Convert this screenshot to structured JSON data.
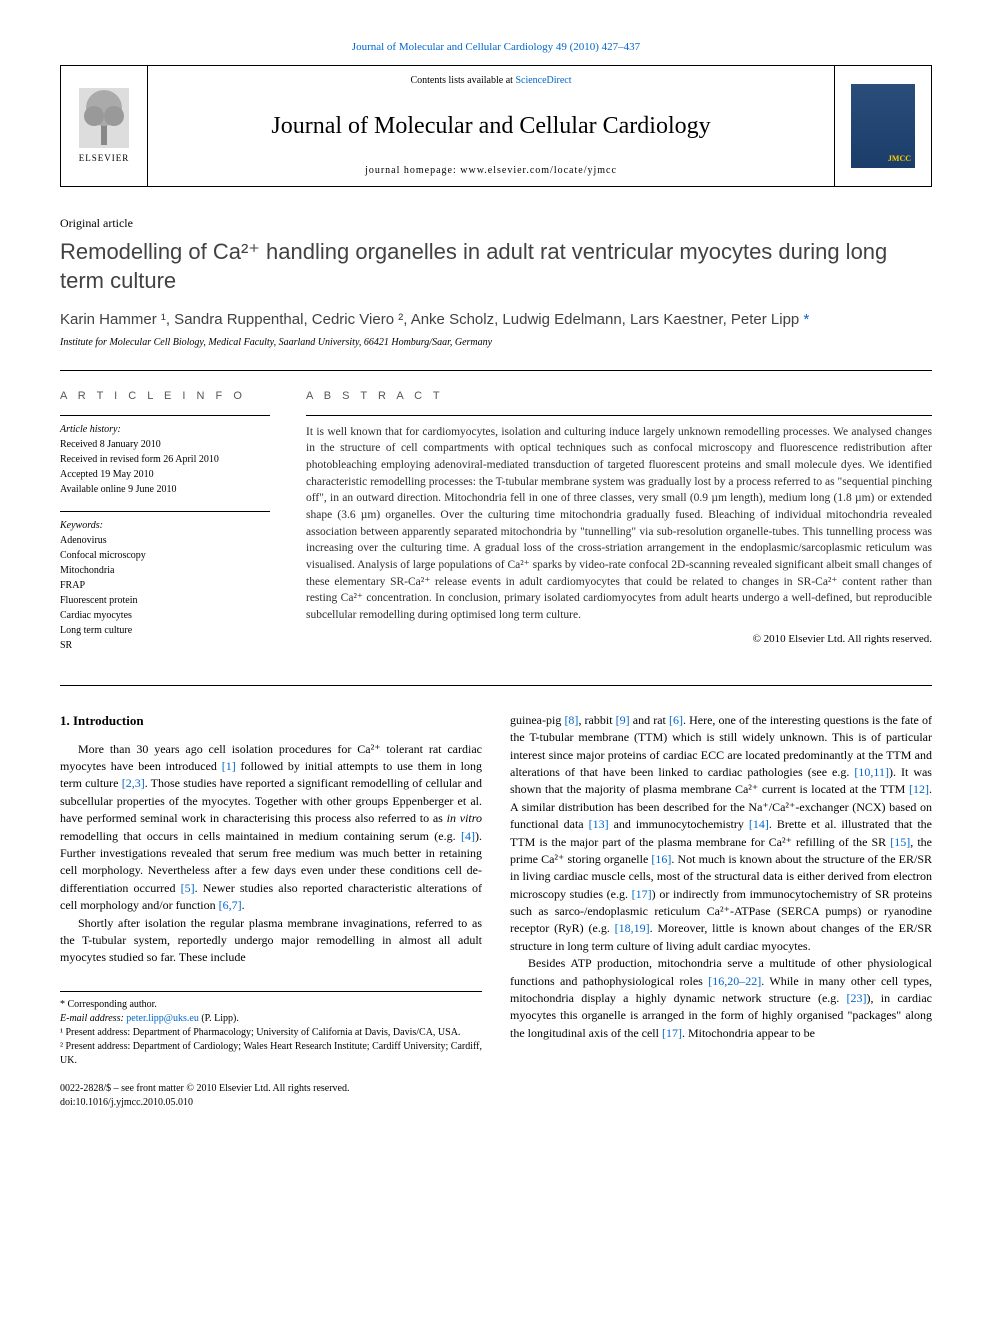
{
  "top_citation": "Journal of Molecular and Cellular Cardiology 49 (2010) 427–437",
  "header": {
    "contents_prefix": "Contents lists available at ",
    "contents_link": "ScienceDirect",
    "journal_title": "Journal of Molecular and Cellular Cardiology",
    "homepage_label": "journal homepage: www.elsevier.com/locate/yjmcc",
    "publisher": "ELSEVIER"
  },
  "article_type": "Original article",
  "title": "Remodelling of Ca²⁺ handling organelles in adult rat ventricular myocytes during long term culture",
  "authors_line": "Karin Hammer ¹, Sandra Ruppenthal, Cedric Viero ², Anke Scholz, Ludwig Edelmann, Lars Kaestner, Peter Lipp ",
  "corresponding_marker": "*",
  "affiliation": "Institute for Molecular Cell Biology, Medical Faculty, Saarland University, 66421 Homburg/Saar, Germany",
  "article_info": {
    "heading": "A R T I C L E   I N F O",
    "history_label": "Article history:",
    "received": "Received 8 January 2010",
    "revised": "Received in revised form 26 April 2010",
    "accepted": "Accepted 19 May 2010",
    "online": "Available online 9 June 2010",
    "keywords_label": "Keywords:",
    "keywords": [
      "Adenovirus",
      "Confocal microscopy",
      "Mitochondria",
      "FRAP",
      "Fluorescent protein",
      "Cardiac myocytes",
      "Long term culture",
      "SR"
    ]
  },
  "abstract": {
    "heading": "A B S T R A C T",
    "text": "It is well known that for cardiomyocytes, isolation and culturing induce largely unknown remodelling processes. We analysed changes in the structure of cell compartments with optical techniques such as confocal microscopy and fluorescence redistribution after photobleaching employing adenoviral-mediated transduction of targeted fluorescent proteins and small molecule dyes. We identified characteristic remodelling processes: the T-tubular membrane system was gradually lost by a process referred to as \"sequential pinching off\", in an outward direction. Mitochondria fell in one of three classes, very small (0.9 µm length), medium long (1.8 µm) or extended shape (3.6 µm) organelles. Over the culturing time mitochondria gradually fused. Bleaching of individual mitochondria revealed association between apparently separated mitochondria by \"tunnelling\" via sub-resolution organelle-tubes. This tunnelling process was increasing over the culturing time. A gradual loss of the cross-striation arrangement in the endoplasmic/sarcoplasmic reticulum was visualised. Analysis of large populations of Ca²⁺ sparks by video-rate confocal 2D-scanning revealed significant albeit small changes of these elementary SR-Ca²⁺ release events in adult cardiomyocytes that could be related to changes in SR-Ca²⁺ content rather than resting Ca²⁺ concentration. In conclusion, primary isolated cardiomyocytes from adult hearts undergo a well-defined, but reproducible subcellular remodelling during optimised long term culture.",
    "copyright": "© 2010 Elsevier Ltd. All rights reserved."
  },
  "body": {
    "intro_heading": "1. Introduction",
    "col1_p1": "More than 30 years ago cell isolation procedures for Ca²⁺ tolerant rat cardiac myocytes have been introduced [1] followed by initial attempts to use them in long term culture [2,3]. Those studies have reported a significant remodelling of cellular and subcellular properties of the myocytes. Together with other groups Eppenberger et al. have performed seminal work in characterising this process also referred to as in vitro remodelling that occurs in cells maintained in medium containing serum (e.g. [4]). Further investigations revealed that serum free medium was much better in retaining cell morphology. Nevertheless after a few days even under these conditions cell de-differentiation occurred [5]. Newer studies also reported characteristic alterations of cell morphology and/or function [6,7].",
    "col1_p2": "Shortly after isolation the regular plasma membrane invaginations, referred to as the T-tubular system, reportedly undergo major remodelling in almost all adult myocytes studied so far. These include",
    "col2_p1": "guinea-pig [8], rabbit [9] and rat [6]. Here, one of the interesting questions is the fate of the T-tubular membrane (TTM) which is still widely unknown. This is of particular interest since major proteins of cardiac ECC are located predominantly at the TTM and alterations of that have been linked to cardiac pathologies (see e.g. [10,11]). It was shown that the majority of plasma membrane Ca²⁺ current is located at the TTM [12]. A similar distribution has been described for the Na⁺/Ca²⁺-exchanger (NCX) based on functional data [13] and immunocytochemistry [14]. Brette et al. illustrated that the TTM is the major part of the plasma membrane for Ca²⁺ refilling of the SR [15], the prime Ca²⁺ storing organelle [16]. Not much is known about the structure of the ER/SR in living cardiac muscle cells, most of the structural data is either derived from electron microscopy studies (e.g. [17]) or indirectly from immunocytochemistry of SR proteins such as sarco-/endoplasmic reticulum Ca²⁺-ATPase (SERCA pumps) or ryanodine receptor (RyR) (e.g. [18,19]. Moreover, little is known about changes of the ER/SR structure in long term culture of living adult cardiac myocytes.",
    "col2_p2": "Besides ATP production, mitochondria serve a multitude of other physiological functions and pathophysiological roles [16,20–22]. While in many other cell types, mitochondria display a highly dynamic network structure (e.g. [23]), in cardiac myocytes this organelle is arranged in the form of highly organised \"packages\" along the longitudinal axis of the cell [17]. Mitochondria appear to be"
  },
  "footnotes": {
    "corr": "* Corresponding author.",
    "email_label": "E-mail address: ",
    "email": "peter.lipp@uks.eu",
    "email_suffix": " (P. Lipp).",
    "fn1": "¹ Present address: Department of Pharmacology; University of California at Davis, Davis/CA, USA.",
    "fn2": "² Present address: Department of Cardiology; Wales Heart Research Institute; Cardiff University; Cardiff, UK."
  },
  "bottom": {
    "issn": "0022-2828/$ – see front matter © 2010 Elsevier Ltd. All rights reserved.",
    "doi": "doi:10.1016/j.yjmcc.2010.05.010"
  }
}
